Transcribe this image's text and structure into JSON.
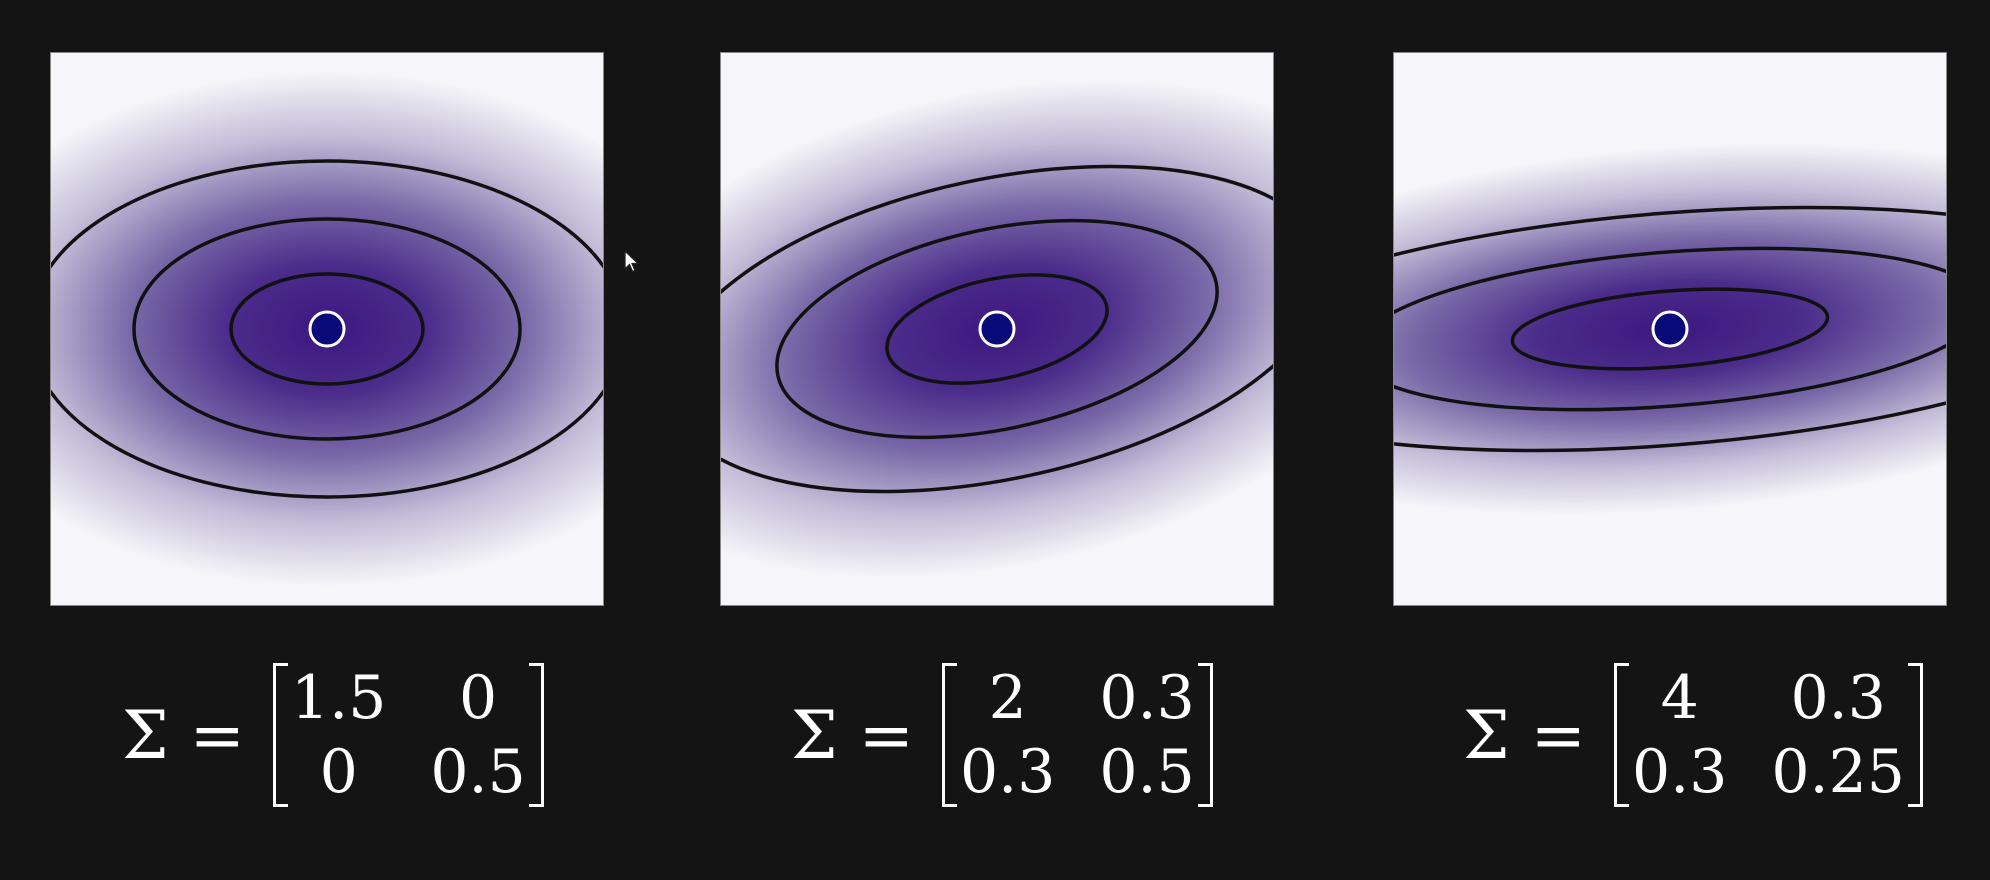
{
  "panels": [
    {
      "id": "panel-1",
      "covariance": [
        [
          1.5,
          0
        ],
        [
          0,
          0.5
        ]
      ],
      "labels": {
        "sigma": "Σ =",
        "a": "1.5",
        "b": "0",
        "c": "0",
        "d": "0.5"
      }
    },
    {
      "id": "panel-2",
      "covariance": [
        [
          2,
          0.3
        ],
        [
          0.3,
          0.5
        ]
      ],
      "labels": {
        "sigma": "Σ =",
        "a": "2",
        "b": "0.3",
        "c": "0.3",
        "d": "0.5"
      }
    },
    {
      "id": "panel-3",
      "covariance": [
        [
          4,
          0.3
        ],
        [
          0.3,
          0.25
        ]
      ],
      "labels": {
        "sigma": "Σ =",
        "a": "4",
        "b": "0.3",
        "c": "0.3",
        "d": "0.25"
      }
    }
  ],
  "colors": {
    "background": "#141414",
    "density_peak": "#3d1780",
    "density_low": "#f6f5f9",
    "contour": "#111111",
    "mean_marker": "#0a0a7a",
    "mean_marker_ring": "#ffffff"
  },
  "mean_marker_icon": "circle-dot",
  "cursor_icon": "arrow-pointer-icon"
}
